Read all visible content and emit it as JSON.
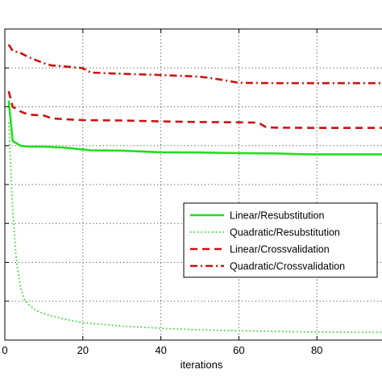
{
  "chart_data": {
    "type": "line",
    "xlabel": "iterations",
    "xlim": [
      0,
      100
    ],
    "ylim": [
      0,
      1
    ],
    "x_ticks": [
      0,
      20,
      40,
      60,
      80
    ],
    "y_tick_count": 8,
    "grid": true,
    "legend_position": "right",
    "series": [
      {
        "name": "Linear/Resubstitution",
        "color": "#22dd22",
        "style": "solid",
        "x": [
          1,
          2,
          4,
          6,
          10,
          15,
          20,
          22,
          30,
          40,
          50,
          60,
          70,
          75,
          80,
          90,
          100
        ],
        "y": [
          0.77,
          0.64,
          0.625,
          0.622,
          0.622,
          0.619,
          0.613,
          0.61,
          0.609,
          0.604,
          0.603,
          0.601,
          0.6,
          0.598,
          0.597,
          0.597,
          0.597
        ]
      },
      {
        "name": "Quadratic/Resubstitution",
        "color": "#22dd22",
        "style": "dotted",
        "x": [
          1,
          2,
          3,
          4,
          5,
          6,
          8,
          10,
          15,
          20,
          30,
          40,
          50,
          60,
          70,
          80,
          90,
          100
        ],
        "y": [
          0.7,
          0.42,
          0.25,
          0.17,
          0.13,
          0.115,
          0.095,
          0.085,
          0.068,
          0.056,
          0.045,
          0.038,
          0.033,
          0.03,
          0.028,
          0.026,
          0.025,
          0.025
        ]
      },
      {
        "name": "Linear/Crossvalidation",
        "color": "#cc1111",
        "style": "dashed",
        "x": [
          1,
          2,
          4,
          6,
          10,
          12,
          15,
          20,
          30,
          40,
          50,
          60,
          65,
          67,
          70,
          80,
          90,
          100
        ],
        "y": [
          0.8,
          0.75,
          0.735,
          0.725,
          0.722,
          0.713,
          0.71,
          0.707,
          0.706,
          0.703,
          0.701,
          0.7,
          0.699,
          0.684,
          0.683,
          0.682,
          0.682,
          0.682
        ]
      },
      {
        "name": "Quadratic/Crossvalidation",
        "color": "#cc1111",
        "style": "dashdot",
        "x": [
          1,
          2,
          4,
          6,
          10,
          12,
          15,
          20,
          22,
          30,
          40,
          50,
          55,
          60,
          70,
          80,
          90,
          100
        ],
        "y": [
          0.95,
          0.93,
          0.923,
          0.91,
          0.89,
          0.883,
          0.88,
          0.874,
          0.86,
          0.856,
          0.852,
          0.847,
          0.838,
          0.827,
          0.826,
          0.826,
          0.826,
          0.826
        ]
      }
    ]
  }
}
